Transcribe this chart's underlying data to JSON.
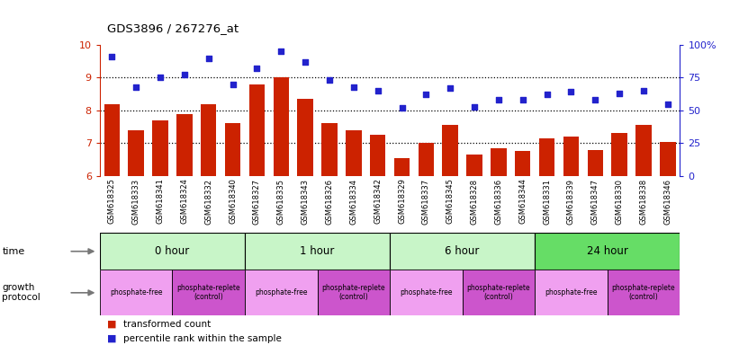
{
  "title": "GDS3896 / 267276_at",
  "samples": [
    "GSM618325",
    "GSM618333",
    "GSM618341",
    "GSM618324",
    "GSM618332",
    "GSM618340",
    "GSM618327",
    "GSM618335",
    "GSM618343",
    "GSM618326",
    "GSM618334",
    "GSM618342",
    "GSM618329",
    "GSM618337",
    "GSM618345",
    "GSM618328",
    "GSM618336",
    "GSM618344",
    "GSM618331",
    "GSM618339",
    "GSM618347",
    "GSM618330",
    "GSM618338",
    "GSM618346"
  ],
  "transformed_count": [
    8.2,
    7.4,
    7.7,
    7.9,
    8.2,
    7.6,
    8.8,
    9.0,
    8.35,
    7.6,
    7.4,
    7.25,
    6.55,
    7.0,
    7.55,
    6.65,
    6.85,
    6.75,
    7.15,
    7.2,
    6.8,
    7.3,
    7.55,
    7.05
  ],
  "percentile_rank": [
    91,
    68,
    75,
    77,
    90,
    70,
    82,
    95,
    87,
    73,
    68,
    65,
    52,
    62,
    67,
    53,
    58,
    58,
    62,
    64,
    58,
    63,
    65,
    55
  ],
  "time_labels": [
    "0 hour",
    "1 hour",
    "6 hour",
    "24 hour"
  ],
  "time_colors": [
    "#c8f5c8",
    "#c8f5c8",
    "#c8f5c8",
    "#66dd66"
  ],
  "protocol_labels": [
    "phosphate-free",
    "phosphate-replete\n(control)",
    "phosphate-free",
    "phosphate-replete\n(control)",
    "phosphate-free",
    "phosphate-replete\n(control)",
    "phosphate-free",
    "phosphate-replete\n(control)"
  ],
  "protocol_colors": [
    "#f0a0f0",
    "#cc55cc",
    "#f0a0f0",
    "#cc55cc",
    "#f0a0f0",
    "#cc55cc",
    "#f0a0f0",
    "#cc55cc"
  ],
  "bar_color": "#cc2200",
  "scatter_color": "#2222cc",
  "ylim_left": [
    6,
    10
  ],
  "ylim_right": [
    0,
    100
  ],
  "yticks_left": [
    6,
    7,
    8,
    9,
    10
  ],
  "yticks_right": [
    0,
    25,
    50,
    75,
    100
  ],
  "ytick_labels_right": [
    "0",
    "25",
    "50",
    "75",
    "100%"
  ],
  "hgrid_vals": [
    7,
    8,
    9
  ]
}
